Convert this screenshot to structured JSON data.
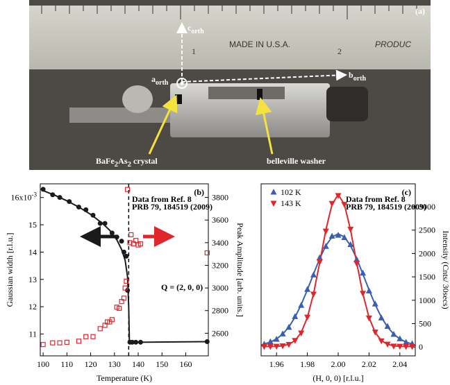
{
  "photo": {
    "label": "(a)",
    "axes": [
      {
        "text": "c",
        "sub": "orth"
      },
      {
        "text": "a",
        "sub": "orth"
      },
      {
        "text": "b",
        "sub": "orth"
      }
    ],
    "callouts": [
      {
        "parts": [
          "BaFe",
          "2",
          "As",
          "2",
          " crystal"
        ]
      },
      {
        "parts": [
          "belleville washer"
        ]
      }
    ],
    "ruler_text": [
      "1",
      "MADE IN U.S.A.",
      "2",
      "PRODUC"
    ]
  },
  "chart_data": [
    {
      "type": "scatter",
      "title": "(b)",
      "note": [
        "Data from Ref. 8",
        "PRB 79, 184519 (2009)"
      ],
      "annotation": "Q = (2, 0, 0)",
      "xlabel": "Temperature (K)",
      "ylabel": "Gaussian width [r.l.u.]",
      "y2label": "Peak Amplitude [arb. units.]",
      "xlim": [
        98.8,
        169.5
      ],
      "xticks": [
        100,
        110,
        120,
        130,
        140,
        150,
        160
      ],
      "ylim": [
        10.2,
        16.5
      ],
      "yticks": [
        {
          "value": 16,
          "label": "16x10",
          "sup": "-3"
        },
        15,
        14,
        13,
        12,
        11
      ],
      "y2lim": [
        2400,
        3920
      ],
      "y2ticks": [
        2600,
        2800,
        3000,
        3200,
        3400,
        3600,
        3800
      ],
      "vline": 136,
      "grid": false,
      "series": [
        {
          "color": "#1a1a1a",
          "marker": "circle",
          "x": [
            100,
            104,
            107,
            111,
            115,
            118,
            121,
            124,
            126,
            129,
            131,
            133,
            134,
            135,
            135.5,
            136.5,
            137.5,
            139,
            141,
            169
          ],
          "values": [
            16.3,
            16.1,
            16.0,
            15.85,
            15.65,
            15.55,
            15.35,
            15.05,
            15.05,
            14.7,
            14.55,
            14.4,
            14.0,
            13.85,
            12.6,
            10.7,
            10.7,
            10.7,
            10.7,
            10.72
          ]
        },
        {
          "color": "#e0262b",
          "marker": "square-open",
          "axis": "y2",
          "x": [
            100,
            104,
            107,
            110,
            115,
            118,
            121,
            124,
            126,
            127,
            128,
            129,
            131,
            132,
            133,
            134,
            134.5,
            135,
            135.5,
            136.5,
            137,
            138,
            139,
            140,
            141,
            169
          ],
          "values": [
            2500,
            2515,
            2515,
            2520,
            2530,
            2570,
            2570,
            2640,
            2670,
            2700,
            2700,
            2720,
            2830,
            2820,
            2880,
            2910,
            3000,
            3060,
            3870,
            3400,
            3470,
            3390,
            3420,
            3380,
            3390,
            3310
          ]
        }
      ],
      "fits": [
        {
          "color": "#1a1a1a",
          "x": [
            100,
            105,
            110,
            115,
            120,
            125,
            128,
            131,
            133,
            134.5,
            135.5,
            136,
            136.3,
            140,
            169
          ],
          "values": [
            16.25,
            16.08,
            15.88,
            15.65,
            15.38,
            15.05,
            14.8,
            14.45,
            14.1,
            13.7,
            13.1,
            12.0,
            10.7,
            10.7,
            10.72
          ]
        }
      ]
    },
    {
      "type": "scatter",
      "title": "(c)",
      "note": [
        "Data from Ref. 8",
        "PRB 79, 184519 (2009)"
      ],
      "xlabel": "(H, 0, 0) [r.l.u.]",
      "ylabel": "Intensity (Cnts/ 30secs)",
      "y_axis_side": "right",
      "xlim": [
        1.95,
        2.05
      ],
      "xticks": [
        1.96,
        1.98,
        {
          "value": 2,
          "label": "2.00"
        },
        2.02,
        2.04
      ],
      "ylim": [
        -190,
        3490
      ],
      "yticks": [
        0,
        500,
        1000,
        1500,
        2000,
        2500,
        3000
      ],
      "legend": "upper left",
      "grid": false,
      "x": [
        1.952,
        1.956,
        1.96,
        1.964,
        1.968,
        1.972,
        1.976,
        1.98,
        1.984,
        1.988,
        1.992,
        1.996,
        2.0,
        2.004,
        2.008,
        2.012,
        2.016,
        2.02,
        2.024,
        2.028,
        2.032,
        2.036,
        2.04,
        2.044,
        2.048
      ],
      "series": [
        {
          "name": "102 K",
          "color": "#3a5fb0",
          "marker": "triangle-up",
          "values": [
            60,
            110,
            165,
            280,
            420,
            650,
            890,
            1230,
            1540,
            1910,
            2150,
            2370,
            2390,
            2340,
            2190,
            1870,
            1580,
            1200,
            920,
            620,
            440,
            270,
            175,
            100,
            70
          ]
        },
        {
          "name": "143 K",
          "color": "#e0262b",
          "marker": "triangle-down",
          "values": [
            10,
            12,
            15,
            25,
            55,
            140,
            300,
            640,
            1130,
            1820,
            2480,
            3070,
            3240,
            3050,
            2520,
            1790,
            1150,
            620,
            320,
            130,
            60,
            20,
            15,
            10,
            10
          ]
        }
      ],
      "fits": [
        {
          "color": "#3a5fb0",
          "values": [
            65,
            104,
            171,
            275,
            428,
            638,
            906,
            1221,
            1561,
            1891,
            2168,
            2354,
            2420,
            2354,
            2168,
            1891,
            1561,
            1221,
            906,
            638,
            428,
            275,
            171,
            104,
            65
          ]
        },
        {
          "color": "#e0262b",
          "values": [
            10,
            11,
            14,
            25,
            57,
            137,
            311,
            631,
            1138,
            1803,
            2505,
            3052,
            3260,
            3052,
            2505,
            1803,
            1138,
            631,
            311,
            137,
            57,
            25,
            14,
            11,
            10
          ]
        }
      ]
    }
  ]
}
